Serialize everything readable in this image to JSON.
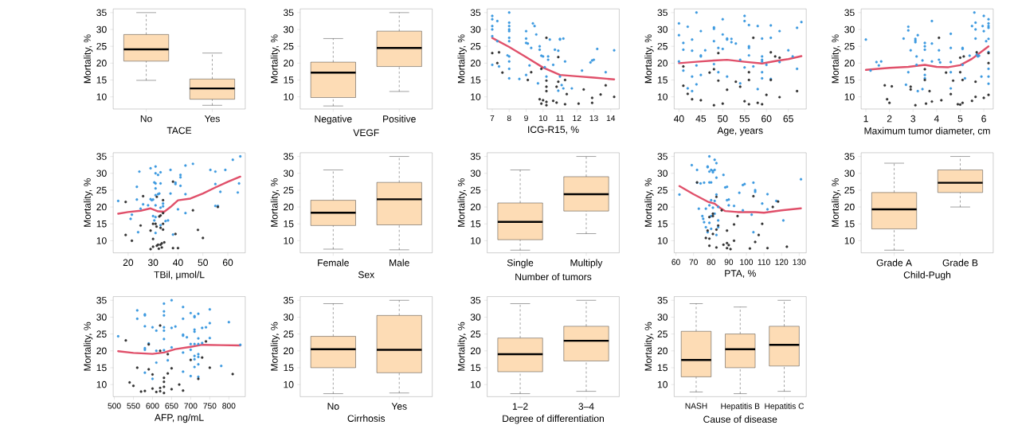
{
  "chart_data": [
    {
      "type": "box",
      "xlabel": "TACE",
      "ylabel": "Mortality, %",
      "categories": [
        "No",
        "Yes"
      ],
      "ylim": [
        6.4,
        36.1
      ],
      "yticks": [
        10,
        15,
        20,
        25,
        30,
        35
      ],
      "series": [
        {
          "color": "#fddcb5",
          "boxes": [
            {
              "low": 14.9,
              "q1": 20.6,
              "median": 24.1,
              "q3": 28.5,
              "high": 35
            },
            {
              "low": 7.5,
              "q1": 9.3,
              "median": 12.5,
              "q3": 15.3,
              "high": 23
            }
          ]
        }
      ]
    },
    {
      "type": "box",
      "xlabel": "VEGF",
      "ylabel": "Mortality, %",
      "categories": [
        "Negative",
        "Positive"
      ],
      "ylim": [
        6.4,
        36.1
      ],
      "yticks": [
        10,
        15,
        20,
        25,
        30,
        35
      ],
      "series": [
        {
          "color": "#fddcb5",
          "boxes": [
            {
              "low": 7.3,
              "q1": 9.8,
              "median": 17.2,
              "q3": 20.3,
              "high": 27.3
            },
            {
              "low": 11.6,
              "q1": 19,
              "median": 24.5,
              "q3": 29.5,
              "high": 35
            }
          ]
        }
      ]
    },
    {
      "type": "scatter",
      "xlabel": "ICG-R15, %",
      "ylabel": "Mortality, %",
      "xlim": [
        6.7,
        14.5
      ],
      "xticks": [
        7,
        8,
        9,
        10,
        11,
        12,
        13,
        14
      ],
      "ylim": [
        6.4,
        36.1
      ],
      "yticks": [
        10,
        15,
        20,
        25,
        30,
        35
      ],
      "series": [
        {
          "marker": "circle",
          "color": "#3d9ae0",
          "x": [
            7,
            7,
            7,
            7,
            7,
            7,
            7.3,
            7.3,
            7.4,
            8,
            8,
            8,
            8,
            8,
            8,
            8,
            8,
            8,
            8,
            8,
            7.9,
            8.6,
            9,
            9,
            9,
            9.1,
            9,
            9.2,
            9.3,
            9.4,
            9.5,
            9.6,
            9.7,
            9.8,
            9.8,
            9.9,
            10,
            10.1,
            10.2,
            10.3,
            10.3,
            10.4,
            10.6,
            10.7,
            10.9,
            11,
            11,
            11.2,
            11,
            10.9,
            11.1,
            11.2,
            11.3,
            11.7,
            12.3,
            12.8,
            12.9,
            13,
            13.2,
            13.7,
            14.2
          ],
          "values": [
            34,
            33,
            31,
            30,
            28,
            19.5,
            32.5,
            26.5,
            19,
            35,
            32,
            31,
            30,
            29.5,
            27.5,
            26.5,
            22,
            20.5,
            18.3,
            15.5,
            22.3,
            15.3,
            29.5,
            27.3,
            26,
            25.8,
            16.5,
            19.3,
            24.5,
            31.8,
            31,
            28.5,
            14,
            25,
            24,
            22.2,
            22,
            18.8,
            16,
            22,
            21,
            27,
            19.5,
            24,
            23.7,
            27.2,
            27,
            27.3,
            16,
            11.8,
            13.5,
            12.5,
            20.5,
            12.5,
            17.8,
            20.2,
            20.8,
            21,
            24.2,
            17.3,
            23.8
          ]
        },
        {
          "marker": "circle",
          "color": "#333333",
          "x": [
            7,
            7.3,
            7.4,
            7.6,
            9.1,
            9.3,
            9.9,
            9.8,
            9.9,
            10,
            10.2,
            10.2,
            10.2,
            10.2,
            10.2,
            10.2,
            10.6,
            10.8,
            10.8,
            10.9,
            10.9,
            11.3,
            11.3,
            11.4,
            12.1,
            12.4,
            12.9,
            12.9,
            13.4,
            13.7,
            14.2
          ],
          "values": [
            23,
            20,
            23.2,
            17.2,
            15,
            17.3,
            18.3,
            9.3,
            8,
            9,
            27.5,
            14.8,
            13,
            11.7,
            8.5,
            7.5,
            8.8,
            8.3,
            13,
            14.5,
            21.8,
            15,
            7.8,
            10.8,
            8,
            12.2,
            9.7,
            8.2,
            10.7,
            13.4,
            10
          ]
        },
        {
          "type": "line",
          "marker": "none",
          "color": "#e0506a",
          "x": [
            7,
            8,
            9,
            10,
            11,
            12,
            13,
            14.2
          ],
          "values": [
            27.5,
            24.8,
            21.8,
            18.7,
            16.5,
            16.1,
            15.7,
            15.2
          ]
        }
      ]
    },
    {
      "type": "scatter",
      "xlabel": "Age, years",
      "ylabel": "Mortality, %",
      "xlim": [
        38.9,
        69.1
      ],
      "xticks": [
        40,
        45,
        50,
        55,
        60,
        65
      ],
      "ylim": [
        6.4,
        36.1
      ],
      "yticks": [
        10,
        15,
        20,
        25,
        30,
        35
      ],
      "series": [
        {
          "marker": "circle",
          "color": "#3d9ae0",
          "x": [
            40,
            40,
            40,
            41,
            41,
            41,
            42,
            42,
            43,
            43,
            43,
            43,
            44,
            44,
            44,
            45,
            45,
            45,
            45,
            46,
            48,
            48,
            48,
            48,
            49,
            49,
            50,
            50,
            50,
            51,
            51,
            51,
            52,
            52,
            53,
            54,
            54,
            55,
            55,
            55,
            56,
            56,
            56,
            56,
            57,
            58,
            58,
            59,
            59,
            59,
            59,
            59,
            59,
            60,
            61,
            61,
            61,
            63,
            63,
            65,
            66,
            67,
            67,
            68
          ],
          "values": [
            31.8,
            28.3,
            20.5,
            26,
            24,
            17.8,
            30.8,
            12.5,
            27,
            23.7,
            16,
            11.7,
            35,
            19.3,
            13.7,
            29.5,
            22.3,
            22,
            16.5,
            23.8,
            30.6,
            30.2,
            26.5,
            19.7,
            24.5,
            17.3,
            33,
            28.5,
            24.2,
            27.3,
            27,
            16,
            27.2,
            26.2,
            25.8,
            21,
            14,
            34,
            32.5,
            18.7,
            31.3,
            25,
            24.5,
            22.3,
            19,
            31,
            12.3,
            27.3,
            22,
            21,
            20.5,
            17.3,
            15.5,
            19.5,
            31.2,
            27.5,
            15.3,
            29.5,
            20.3,
            23.8,
            22,
            30.5,
            18.3,
            32.2
          ]
        },
        {
          "marker": "circle",
          "color": "#333333",
          "x": [
            41,
            41,
            42,
            43,
            45,
            47,
            48,
            48,
            49,
            49,
            50,
            51,
            53,
            54,
            55,
            56,
            56,
            56,
            57,
            58,
            59,
            60,
            61,
            61,
            62,
            63,
            63,
            67
          ],
          "values": [
            19,
            13.3,
            10.9,
            9.3,
            9,
            17.2,
            18.2,
            7.5,
            23,
            14.8,
            8,
            12.1,
            14.5,
            13,
            8.7,
            17.3,
            15,
            7.8,
            27.5,
            8.2,
            7.8,
            10.6,
            23.2,
            15,
            22,
            21.6,
            9.9,
            11.7
          ]
        },
        {
          "type": "line",
          "marker": "none",
          "color": "#e0506a",
          "x": [
            40,
            44,
            48,
            51,
            55,
            59,
            62,
            65,
            68
          ],
          "values": [
            20,
            20.4,
            20.8,
            21,
            20.4,
            19.9,
            20.6,
            21.2,
            22.1
          ]
        }
      ]
    },
    {
      "type": "scatter",
      "xlabel": "Maximum tumor diameter, cm",
      "ylabel": "Mortality, %",
      "xlim": [
        0.8,
        6.4
      ],
      "xticks": [
        1,
        2,
        3,
        4,
        5,
        6
      ],
      "ylim": [
        6.4,
        36.1
      ],
      "yticks": [
        10,
        15,
        20,
        25,
        30,
        35
      ],
      "series": [
        {
          "marker": "circle",
          "color": "#3d9ae0",
          "x": [
            1,
            1.2,
            1.45,
            1.55,
            1.65,
            2.6,
            2.7,
            2.8,
            2.8,
            2.8,
            2.9,
            3.1,
            3.1,
            3.1,
            3.15,
            3.15,
            3.2,
            3.2,
            3.4,
            3.4,
            3.5,
            3.5,
            3.5,
            3.5,
            3.5,
            3.8,
            3.8,
            3.8,
            4.1,
            4.1,
            4.15,
            4.6,
            4.6,
            4.6,
            4.6,
            4.6,
            5.1,
            5.1,
            5.1,
            5.2,
            5.4,
            5.5,
            5.6,
            5.65,
            5.65,
            5.65,
            5.7,
            5.75,
            5.8,
            5.9,
            5.95,
            6,
            6,
            6.2,
            6.2,
            6.2,
            6.2,
            6.2,
            6.2,
            6.2,
            6.2,
            6.2,
            6.1
          ],
          "values": [
            27,
            17.8,
            20.3,
            19.3,
            20.5,
            27.3,
            13.6,
            30.8,
            29.7,
            17.3,
            23.8,
            27.2,
            26.7,
            26.2,
            22,
            19.5,
            11.7,
            28.3,
            12.3,
            20.8,
            26,
            25,
            24,
            16.5,
            15.5,
            32.5,
            25.8,
            20.5,
            23.8,
            21,
            20.2,
            28.7,
            24.5,
            20.3,
            17.3,
            12.5,
            24.5,
            24.2,
            19.5,
            15.5,
            22.2,
            31,
            35,
            32,
            30,
            27.3,
            22.5,
            22,
            22.2,
            16,
            31,
            34,
            29.5,
            33,
            31.8,
            31,
            30.5,
            27.2,
            23.3,
            18.3,
            16,
            13.9,
            26.5
          ]
        },
        {
          "marker": "circle",
          "color": "#333333",
          "x": [
            1.8,
            1.9,
            2,
            2.1,
            2.9,
            2.9,
            3.1,
            3.5,
            3.5,
            3.55,
            3.7,
            3.8,
            4.1,
            4.2,
            4.4,
            4.6,
            4.7,
            4.9,
            5,
            5,
            5,
            5.1,
            5.1,
            5.15,
            5.5,
            5.65,
            5.65,
            5.7,
            6,
            6.2,
            6.2,
            6.2
          ],
          "values": [
            13.4,
            9.3,
            8.2,
            13.1,
            13,
            12.2,
            7.5,
            18.2,
            15,
            8,
            11.7,
            8.6,
            27.5,
            9,
            17.2,
            10.8,
            14.8,
            7.8,
            7.7,
            17.3,
            21.6,
            15,
            8.2,
            22,
            8.8,
            10,
            14.5,
            23.2,
            9.7,
            10.6,
            20,
            23
          ]
        },
        {
          "type": "line",
          "marker": "none",
          "color": "#e0506a",
          "x": [
            1,
            1.5,
            2,
            2.8,
            3.5,
            4,
            4.5,
            5,
            5.5,
            6.2
          ],
          "values": [
            18,
            18.3,
            18.6,
            18.9,
            19.5,
            18.9,
            18.8,
            19.4,
            21.3,
            25
          ]
        }
      ]
    },
    {
      "type": "scatter",
      "xlabel": "TBil, μmol/L",
      "ylabel": "Mortality, %",
      "xlim": [
        14,
        67
      ],
      "xticks": [
        20,
        30,
        40,
        50,
        60
      ],
      "ylim": [
        6.4,
        36.1
      ],
      "yticks": [
        10,
        15,
        20,
        25,
        30,
        35
      ],
      "series": [
        {
          "marker": "circle",
          "color": "#3d9ae0",
          "x": [
            16,
            21,
            21.5,
            23.5,
            23.5,
            24,
            24.5,
            25,
            26,
            28,
            29,
            29,
            29.5,
            30,
            30,
            30.5,
            30.5,
            31,
            31,
            31,
            31,
            31,
            31,
            31,
            31,
            32,
            32,
            32.5,
            33,
            33,
            33,
            33,
            34,
            34,
            35,
            36,
            37,
            37,
            38,
            39,
            39,
            40,
            41,
            41,
            41,
            43,
            43,
            43,
            46,
            53,
            55,
            55,
            55,
            56,
            57,
            59,
            62,
            64,
            65,
            64.5
          ],
          "values": [
            21.8,
            16.5,
            17.7,
            26,
            22.2,
            12.5,
            30.5,
            19.5,
            20.8,
            20.5,
            31.5,
            22.3,
            22,
            22.2,
            17.3,
            27.3,
            16,
            32,
            30,
            27,
            25.5,
            23.5,
            20.5,
            17,
            12.3,
            29.5,
            23.8,
            24,
            30.3,
            27,
            19.8,
            14.6,
            21,
            20.2,
            15.8,
            16,
            31,
            24,
            11.8,
            27.2,
            26.8,
            19.3,
            29.5,
            28.8,
            26.3,
            32.3,
            23.8,
            18.2,
            32.8,
            31,
            30.5,
            26.8,
            20.3,
            20.3,
            24.5,
            31,
            34,
            24.3,
            35,
            27
          ]
        },
        {
          "marker": "circle",
          "color": "#333333",
          "x": [
            19,
            19,
            21.5,
            25,
            26,
            29,
            29,
            30,
            30,
            30,
            31,
            31.4,
            31.5,
            32,
            32.5,
            33,
            33,
            33,
            33.5,
            33.5,
            34,
            34,
            34,
            34,
            34.5,
            38,
            38,
            39,
            40,
            46,
            48,
            50,
            56,
            31.5,
            32.3
          ],
          "values": [
            21.5,
            11.7,
            10,
            14.5,
            23.2,
            13,
            7.5,
            15,
            10.5,
            8.2,
            15,
            14.2,
            8.5,
            8.8,
            17.2,
            17.5,
            13.8,
            8.8,
            9.2,
            8,
            22,
            18.2,
            15,
            13.3,
            9.5,
            27.5,
            7.8,
            12,
            7.8,
            19,
            13.2,
            10.8,
            20,
            23,
            7.6
          ]
        },
        {
          "type": "line",
          "marker": "none",
          "color": "#e0506a",
          "x": [
            16,
            20,
            25,
            29,
            32,
            34.5,
            37,
            40,
            45,
            50,
            55,
            60,
            65
          ],
          "values": [
            18,
            18.5,
            18.9,
            19.6,
            18.7,
            18.6,
            20,
            22,
            22.5,
            24,
            25.8,
            27.5,
            29
          ]
        }
      ]
    },
    {
      "type": "box",
      "xlabel": "Sex",
      "ylabel": "Mortality, %",
      "categories": [
        "Female",
        "Male"
      ],
      "ylim": [
        6.4,
        36.1
      ],
      "yticks": [
        10,
        15,
        20,
        25,
        30,
        35
      ],
      "series": [
        {
          "color": "#fddcb5",
          "boxes": [
            {
              "low": 7.5,
              "q1": 14.5,
              "median": 18.3,
              "q3": 22,
              "high": 31
            },
            {
              "low": 7.3,
              "q1": 14.7,
              "median": 22.3,
              "q3": 27.3,
              "high": 35
            }
          ]
        }
      ]
    },
    {
      "type": "box",
      "xlabel": "Number of tumors",
      "ylabel": "Mortality, %",
      "categories": [
        "Single",
        "Multiply"
      ],
      "ylim": [
        6.4,
        36.1
      ],
      "yticks": [
        10,
        15,
        20,
        25,
        30,
        35
      ],
      "series": [
        {
          "color": "#fddcb5",
          "boxes": [
            {
              "low": 7.2,
              "q1": 10.3,
              "median": 15.6,
              "q3": 21.2,
              "high": 31
            },
            {
              "low": 12.1,
              "q1": 18.8,
              "median": 23.8,
              "q3": 29,
              "high": 35
            }
          ]
        }
      ]
    },
    {
      "type": "scatter",
      "xlabel": "PTA, %",
      "ylabel": "Mortality, %",
      "xlim": [
        59,
        134
      ],
      "xticks": [
        60,
        70,
        80,
        90,
        100,
        110,
        120,
        130
      ],
      "ylim": [
        6.4,
        36.1
      ],
      "yticks": [
        10,
        15,
        20,
        25,
        30,
        35
      ],
      "series": [
        {
          "marker": "circle",
          "color": "#3d9ae0",
          "x": [
            62,
            69,
            72,
            72,
            73,
            74,
            75,
            75.5,
            76,
            76,
            77,
            77,
            78,
            78,
            78,
            79,
            79,
            79,
            79,
            79,
            80,
            80,
            80,
            80,
            80,
            81,
            81,
            81,
            82,
            82,
            82,
            82,
            83,
            83,
            83,
            83,
            84,
            84,
            84,
            87,
            88,
            89,
            89,
            90,
            90,
            93,
            96,
            98,
            99,
            98,
            103,
            104,
            104,
            105,
            105,
            109,
            112,
            112,
            117,
            121,
            131
          ],
          "values": [
            23.7,
            32.4,
            31,
            27.2,
            19.5,
            27,
            17.3,
            16.5,
            15.5,
            27.2,
            14,
            19.5,
            32,
            31.8,
            12.5,
            35,
            30.5,
            27.3,
            20.5,
            15.3,
            31,
            27.3,
            22,
            17.3,
            13.5,
            30.7,
            30.3,
            19.8,
            31,
            34,
            21.8,
            18,
            33,
            28.7,
            23.7,
            11.7,
            20,
            14,
            16,
            29.5,
            25.8,
            26,
            22,
            22.2,
            20.5,
            20.3,
            24.2,
            26.5,
            26.8,
            19,
            17.7,
            27.2,
            12.5,
            25,
            24.5,
            21,
            23.8,
            19.3,
            21.8,
            16,
            28.2
          ]
        },
        {
          "marker": "circle",
          "color": "#333333",
          "x": [
            72,
            77,
            78,
            79,
            79,
            79,
            81,
            81,
            81,
            83,
            83,
            83,
            84,
            86,
            87,
            89,
            89,
            89,
            90,
            91,
            93,
            93,
            95,
            102,
            104,
            105,
            107,
            109,
            112,
            115,
            118,
            123
          ],
          "values": [
            27.3,
            10.8,
            13,
            17,
            10.6,
            8.5,
            18,
            17.3,
            12,
            23,
            13.3,
            8,
            14.5,
            19,
            8.8,
            13,
            9.3,
            7.8,
            8.7,
            7.5,
            14.8,
            10,
            17.3,
            7.7,
            23.2,
            9.6,
            11.7,
            15,
            7.8,
            20,
            21.6,
            8.2
          ]
        },
        {
          "type": "line",
          "marker": "none",
          "color": "#e0506a",
          "x": [
            62,
            70,
            78,
            82,
            85,
            88,
            95,
            105,
            110,
            120,
            131
          ],
          "values": [
            26.2,
            23.8,
            21.6,
            21,
            19.8,
            18.8,
            18.5,
            18.5,
            18.3,
            19,
            19.6
          ]
        }
      ]
    },
    {
      "type": "box",
      "xlabel": "Child-Pugh",
      "ylabel": "Mortality, %",
      "categories": [
        "Grade A",
        "Grade B"
      ],
      "ylim": [
        6.4,
        36.1
      ],
      "yticks": [
        10,
        15,
        20,
        25,
        30,
        35
      ],
      "series": [
        {
          "color": "#fddcb5",
          "boxes": [
            {
              "low": 7.2,
              "q1": 13.5,
              "median": 19.3,
              "q3": 24.3,
              "high": 33
            },
            {
              "low": 20,
              "q1": 24.3,
              "median": 27.2,
              "q3": 31,
              "high": 35
            }
          ]
        }
      ]
    },
    {
      "type": "scatter",
      "xlabel": "AFP, ng/mL",
      "ylabel": "Mortality, %",
      "xlim": [
        497,
        843
      ],
      "xticks": [
        500,
        550,
        600,
        650,
        700,
        750,
        800
      ],
      "ylim": [
        6.4,
        36.1
      ],
      "yticks": [
        10,
        15,
        20,
        25,
        30,
        35
      ],
      "series": [
        {
          "marker": "circle",
          "color": "#3d9ae0",
          "x": [
            510,
            560,
            560,
            580,
            580,
            580,
            580,
            580,
            580,
            590,
            600,
            600,
            610,
            610,
            610,
            630,
            630,
            630,
            630,
            630,
            630,
            630,
            640,
            650,
            650,
            650,
            660,
            680,
            680,
            680,
            680,
            680,
            680,
            690,
            700,
            700,
            700,
            700,
            710,
            710,
            710,
            710,
            710,
            710,
            710,
            710,
            720,
            720,
            720,
            720,
            720,
            720,
            720,
            730,
            730,
            740,
            750,
            750,
            750,
            780,
            800,
            830
          ],
          "values": [
            24.3,
            32,
            29.5,
            30.8,
            30.5,
            27.3,
            20.8,
            20.3,
            13.5,
            22.2,
            27,
            11.7,
            26,
            20,
            16.5,
            34,
            31.7,
            30.5,
            27,
            26,
            23.5,
            20.2,
            17.2,
            35,
            26.8,
            21,
            27.2,
            33,
            29.5,
            24.8,
            24.5,
            19.5,
            13.8,
            24,
            31.2,
            22,
            20.3,
            12.5,
            30.3,
            30,
            26.3,
            25.7,
            22,
            18.5,
            17.5,
            15.2,
            31,
            23.7,
            22,
            19,
            18.2,
            16,
            12.3,
            26.8,
            22.3,
            27,
            32.3,
            28.2,
            23.8,
            15.5,
            28.5,
            21.8
          ]
        },
        {
          "marker": "circle",
          "color": "#333333",
          "x": [
            530,
            540,
            550,
            560,
            570,
            580,
            590,
            590,
            600,
            600,
            610,
            620,
            620,
            620,
            620,
            630,
            630,
            630,
            630,
            640,
            640,
            650,
            650,
            670,
            680,
            700,
            720,
            730,
            740,
            750,
            810
          ],
          "values": [
            23.1,
            10.6,
            9.6,
            15,
            7.9,
            8.1,
            21.9,
            14.5,
            13,
            8.8,
            7.8,
            27.5,
            20,
            9,
            8,
            12,
            10.8,
            9.3,
            7.5,
            19,
            13.3,
            14.8,
            8.6,
            10,
            8.2,
            17.3,
            11.7,
            18,
            22.8,
            15,
            13.1
          ]
        },
        {
          "type": "line",
          "marker": "none",
          "color": "#e0506a",
          "x": [
            510,
            550,
            600,
            630,
            660,
            700,
            730,
            780,
            830
          ],
          "values": [
            19.9,
            19.4,
            19.1,
            19.5,
            20.5,
            21.2,
            21.8,
            21.7,
            21.6
          ]
        }
      ]
    },
    {
      "type": "box",
      "xlabel": "Cirrhosis",
      "ylabel": "Mortality, %",
      "categories": [
        "No",
        "Yes"
      ],
      "ylim": [
        6.4,
        36.1
      ],
      "yticks": [
        10,
        15,
        20,
        25,
        30,
        35
      ],
      "series": [
        {
          "color": "#fddcb5",
          "boxes": [
            {
              "low": 7.3,
              "q1": 15,
              "median": 20.5,
              "q3": 24.3,
              "high": 34
            },
            {
              "low": 7.5,
              "q1": 13.5,
              "median": 20.3,
              "q3": 30.5,
              "high": 35
            }
          ]
        }
      ]
    },
    {
      "type": "box",
      "xlabel": "Degree of differentiation",
      "ylabel": "Mortality, %",
      "categories": [
        "1–2",
        "3–4"
      ],
      "ylim": [
        6.4,
        36.1
      ],
      "yticks": [
        10,
        15,
        20,
        25,
        30,
        35
      ],
      "series": [
        {
          "color": "#fddcb5",
          "boxes": [
            {
              "low": 7.3,
              "q1": 13.8,
              "median": 19,
              "q3": 23.8,
              "high": 34
            },
            {
              "low": 8,
              "q1": 17,
              "median": 23,
              "q3": 27.3,
              "high": 35
            }
          ]
        }
      ]
    },
    {
      "type": "box",
      "xlabel": "Cause of disease",
      "ylabel": "Mortality, %",
      "categories": [
        "NASH",
        "Hepatitis B",
        "Hepatitis C"
      ],
      "ylim": [
        6.4,
        36.1
      ],
      "yticks": [
        10,
        15,
        20,
        25,
        30,
        35
      ],
      "series": [
        {
          "color": "#fddcb5",
          "boxes": [
            {
              "low": 7.8,
              "q1": 12.3,
              "median": 17.3,
              "q3": 25.8,
              "high": 34
            },
            {
              "low": 7.3,
              "q1": 15,
              "median": 20.5,
              "q3": 25,
              "high": 33
            },
            {
              "low": 8,
              "q1": 15.5,
              "median": 21.8,
              "q3": 27.3,
              "high": 35
            }
          ]
        }
      ]
    }
  ]
}
